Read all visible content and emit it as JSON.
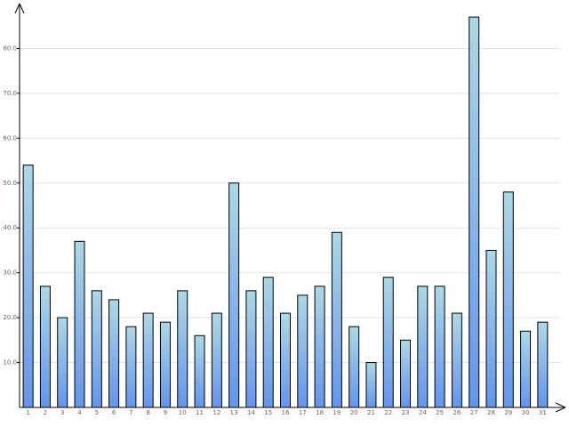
{
  "chart_data": {
    "type": "bar",
    "categories": [
      "1",
      "2",
      "3",
      "4",
      "5",
      "6",
      "7",
      "8",
      "9",
      "10",
      "11",
      "12",
      "13",
      "14",
      "15",
      "16",
      "17",
      "18",
      "19",
      "20",
      "21",
      "22",
      "23",
      "24",
      "25",
      "26",
      "27",
      "28",
      "29",
      "30",
      "31"
    ],
    "values": [
      54,
      27,
      20,
      37,
      26,
      24,
      18,
      21,
      19,
      26,
      16,
      21,
      50,
      26,
      29,
      21,
      25,
      27,
      39,
      18,
      10,
      29,
      15,
      27,
      27,
      21,
      87,
      35,
      48,
      17,
      19
    ],
    "gradient": [
      "#add8e6",
      "#6495ed"
    ],
    "ylim": [
      0,
      90
    ],
    "yticks": [
      {
        "value": 10,
        "label": "10.0"
      },
      {
        "value": 20,
        "label": "20.0"
      },
      {
        "value": 30,
        "label": "30.0"
      },
      {
        "value": 40,
        "label": "40.0"
      },
      {
        "value": 50,
        "label": "50.0"
      },
      {
        "value": 60,
        "label": "60.0"
      },
      {
        "value": 70,
        "label": "70.0"
      },
      {
        "value": 80,
        "label": "80.0"
      }
    ],
    "grid": true
  }
}
